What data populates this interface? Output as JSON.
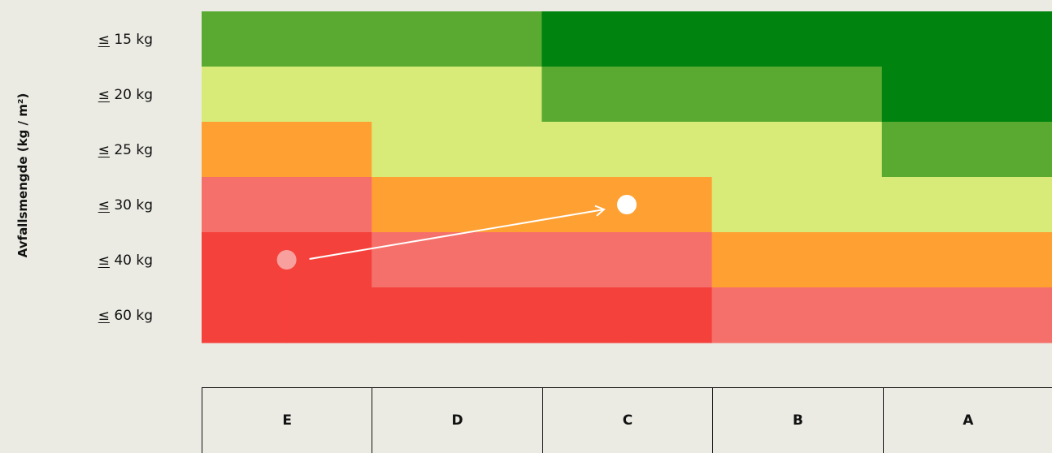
{
  "chart_data": {
    "type": "heatmap",
    "ylabel": "Avfallsmengde (kg / m²)",
    "rows": [
      {
        "symbol": "≤",
        "label": "15 kg"
      },
      {
        "symbol": "≤",
        "label": "20 kg"
      },
      {
        "symbol": "≤",
        "label": "25 kg"
      },
      {
        "symbol": "≤",
        "label": "30 kg"
      },
      {
        "symbol": "≤",
        "label": "40 kg"
      },
      {
        "symbol": "≤",
        "label": "60 kg"
      }
    ],
    "columns": [
      "E",
      "D",
      "C",
      "B",
      "A"
    ],
    "palette": {
      "deep_green": "#00840f",
      "green": "#5aaa32",
      "light_green": "#d8eb78",
      "orange": "#ffa032",
      "light_red": "#f5706a",
      "red": "#f5413c"
    },
    "sub_columns": 10,
    "grid": [
      [
        "green",
        "green",
        "green",
        "green",
        "deep_green",
        "deep_green",
        "deep_green",
        "deep_green",
        "deep_green",
        "deep_green"
      ],
      [
        "light_green",
        "light_green",
        "light_green",
        "light_green",
        "green",
        "green",
        "green",
        "green",
        "deep_green",
        "deep_green"
      ],
      [
        "orange",
        "orange",
        "light_green",
        "light_green",
        "light_green",
        "light_green",
        "light_green",
        "light_green",
        "green",
        "green"
      ],
      [
        "light_red",
        "light_red",
        "orange",
        "orange",
        "orange",
        "orange",
        "light_green",
        "light_green",
        "light_green",
        "light_green"
      ],
      [
        "red",
        "red",
        "light_red",
        "light_red",
        "light_red",
        "light_red",
        "orange",
        "orange",
        "orange",
        "orange"
      ],
      [
        "red",
        "red",
        "red",
        "red",
        "red",
        "red",
        "light_red",
        "light_red",
        "light_red",
        "light_red"
      ]
    ],
    "start_point": {
      "column": "E",
      "row": "40 kg"
    },
    "end_point": {
      "column": "C",
      "row": "30 kg"
    },
    "colors": {
      "start_point": "#f7a09d",
      "end_point": "#ffffff",
      "arrow": "#ffffff",
      "background": "#ebebe4"
    }
  }
}
